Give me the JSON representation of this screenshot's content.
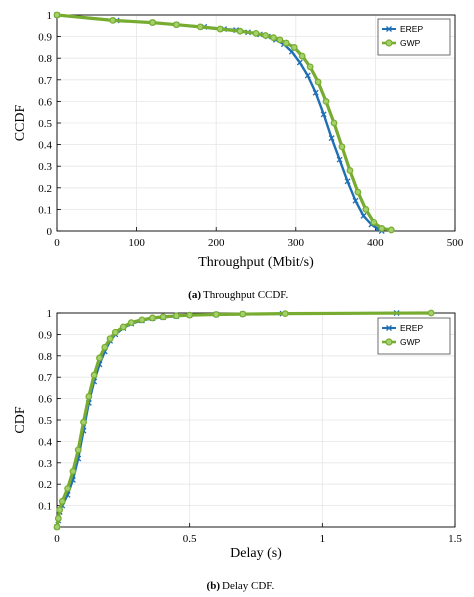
{
  "figure": {
    "caption_a_label": "(a)",
    "caption_a_text": "Throughput CCDF.",
    "caption_b_label": "(b)",
    "caption_b_text": "Delay CDF."
  },
  "chart_data": [
    {
      "type": "line",
      "xlabel": "Throughput (Mbit/s)",
      "ylabel": "CCDF",
      "xlim": [
        0,
        500
      ],
      "ylim": [
        0,
        1
      ],
      "xticks": [
        "0",
        "100",
        "200",
        "300",
        "400",
        "500"
      ],
      "yticks": [
        "0",
        "0.1",
        "0.2",
        "0.3",
        "0.4",
        "0.5",
        "0.6",
        "0.7",
        "0.8",
        "0.9",
        "1"
      ],
      "grid": true,
      "legend_position": "top-right",
      "series": [
        {
          "name": "EREP",
          "color": "#1f6fb5",
          "marker": "x",
          "x": [
            0,
            75,
            120,
            150,
            185,
            210,
            225,
            240,
            255,
            265,
            275,
            285,
            295,
            305,
            315,
            325,
            335,
            345,
            355,
            365,
            375,
            385,
            395,
            403,
            408
          ],
          "y": [
            1,
            0.975,
            0.965,
            0.955,
            0.945,
            0.935,
            0.93,
            0.92,
            0.91,
            0.9,
            0.885,
            0.865,
            0.83,
            0.78,
            0.72,
            0.64,
            0.54,
            0.43,
            0.33,
            0.23,
            0.14,
            0.07,
            0.03,
            0.01,
            0
          ]
        },
        {
          "name": "GWP",
          "color": "#77ac30",
          "marker": "o",
          "x": [
            0,
            70,
            120,
            150,
            180,
            205,
            230,
            250,
            262,
            272,
            280,
            288,
            298,
            308,
            318,
            328,
            338,
            348,
            358,
            368,
            378,
            388,
            398,
            408,
            420
          ],
          "y": [
            1,
            0.975,
            0.965,
            0.955,
            0.945,
            0.935,
            0.925,
            0.915,
            0.905,
            0.895,
            0.885,
            0.87,
            0.85,
            0.81,
            0.76,
            0.69,
            0.6,
            0.5,
            0.39,
            0.28,
            0.18,
            0.1,
            0.04,
            0.012,
            0.005
          ]
        }
      ]
    },
    {
      "type": "line",
      "xlabel": "Delay (s)",
      "ylabel": "CDF",
      "xlim": [
        0,
        1.5
      ],
      "ylim": [
        0,
        1
      ],
      "xticks": [
        "0",
        "0.5",
        "1",
        "1.5"
      ],
      "yticks": [
        "0.1",
        "0.2",
        "0.3",
        "0.4",
        "0.5",
        "0.6",
        "0.7",
        "0.8",
        "0.9",
        "1"
      ],
      "grid": true,
      "legend_position": "top-right",
      "series": [
        {
          "name": "EREP",
          "color": "#1f6fb5",
          "marker": "x",
          "x": [
            0,
            0.005,
            0.01,
            0.02,
            0.04,
            0.06,
            0.08,
            0.1,
            0.12,
            0.14,
            0.16,
            0.18,
            0.2,
            0.22,
            0.25,
            0.28,
            0.32,
            0.36,
            0.4,
            0.45,
            0.5,
            0.6,
            0.7,
            0.85,
            1.28
          ],
          "y": [
            0,
            0.03,
            0.07,
            0.1,
            0.15,
            0.22,
            0.32,
            0.45,
            0.58,
            0.68,
            0.76,
            0.82,
            0.87,
            0.9,
            0.93,
            0.95,
            0.965,
            0.975,
            0.98,
            0.985,
            0.99,
            0.993,
            0.995,
            0.997,
            1
          ]
        },
        {
          "name": "GWP",
          "color": "#77ac30",
          "marker": "o",
          "x": [
            0,
            0.005,
            0.01,
            0.02,
            0.04,
            0.06,
            0.08,
            0.1,
            0.12,
            0.14,
            0.16,
            0.18,
            0.2,
            0.22,
            0.25,
            0.28,
            0.32,
            0.36,
            0.4,
            0.45,
            0.5,
            0.6,
            0.7,
            0.86,
            1.41
          ],
          "y": [
            0,
            0.04,
            0.08,
            0.12,
            0.18,
            0.26,
            0.36,
            0.49,
            0.61,
            0.71,
            0.79,
            0.84,
            0.88,
            0.91,
            0.935,
            0.955,
            0.968,
            0.977,
            0.982,
            0.987,
            0.99,
            0.993,
            0.995,
            0.997,
            1
          ]
        }
      ]
    }
  ]
}
